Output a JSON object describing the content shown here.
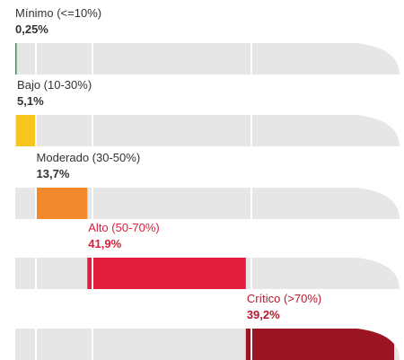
{
  "chart_data": {
    "type": "bar",
    "categories": [
      "Mínimo (<=10%)",
      "Bajo (10-30%)",
      "Moderado (30-50%)",
      "Alto (50-70%)",
      "Crítico (>70%)"
    ],
    "values": [
      0.25,
      5.1,
      13.7,
      41.9,
      39.2
    ],
    "value_labels": [
      "0,25%",
      "5,1%",
      "13,7%",
      "41,9%",
      "39,2%"
    ],
    "colors": [
      "#2e9a4e",
      "#f7c51e",
      "#f08a2c",
      "#e31e3c",
      "#9b1622"
    ],
    "label_colors": [
      "#333333",
      "#333333",
      "#333333",
      "#d81e3c",
      "#b8182e"
    ]
  }
}
